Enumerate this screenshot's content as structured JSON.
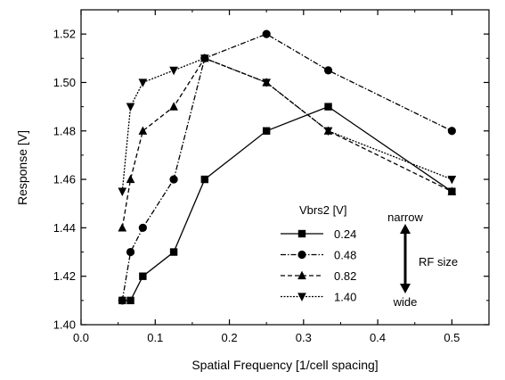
{
  "chart_data": {
    "type": "line",
    "title": "",
    "xlabel": "Spatial Frequency [1/cell spacing]",
    "ylabel": "Response [V]",
    "xlim": [
      0.0,
      0.55
    ],
    "ylim": [
      1.4,
      1.53
    ],
    "xticks": [
      "0.0",
      "0.1",
      "0.2",
      "0.3",
      "0.4",
      "0.5"
    ],
    "yticks": [
      "1.40",
      "1.42",
      "1.44",
      "1.46",
      "1.48",
      "1.50",
      "1.52"
    ],
    "grid": false,
    "legend": {
      "title": "Vbrs2 [V]",
      "placement": "lower-right"
    },
    "series": [
      {
        "name": "0.24",
        "marker": "square",
        "line": "solid",
        "x": [
          0.0556,
          0.0667,
          0.0833,
          0.125,
          0.1667,
          0.25,
          0.3333,
          0.5
        ],
        "y": [
          1.41,
          1.41,
          1.42,
          1.43,
          1.46,
          1.48,
          1.49,
          1.455
        ]
      },
      {
        "name": "0.48",
        "marker": "circle",
        "line": "dashdot",
        "x": [
          0.0556,
          0.0667,
          0.0833,
          0.125,
          0.1667,
          0.25,
          0.3333,
          0.5
        ],
        "y": [
          1.41,
          1.43,
          1.44,
          1.46,
          1.51,
          1.52,
          1.505,
          1.48
        ]
      },
      {
        "name": "0.82",
        "marker": "triangle-up",
        "line": "dashed",
        "x": [
          0.0556,
          0.0667,
          0.0833,
          0.125,
          0.1667,
          0.25,
          0.3333,
          0.5
        ],
        "y": [
          1.44,
          1.46,
          1.48,
          1.49,
          1.51,
          1.5,
          1.48,
          1.455
        ]
      },
      {
        "name": "1.40",
        "marker": "triangle-down",
        "line": "dotted",
        "x": [
          0.0556,
          0.0667,
          0.0833,
          0.125,
          0.1667,
          0.25,
          0.3333,
          0.5
        ],
        "y": [
          1.455,
          1.49,
          1.5,
          1.505,
          1.51,
          1.5,
          1.48,
          1.46
        ]
      }
    ],
    "annotations": {
      "narrow": "narrow",
      "wide": "wide",
      "rf_size": "RF size"
    }
  }
}
